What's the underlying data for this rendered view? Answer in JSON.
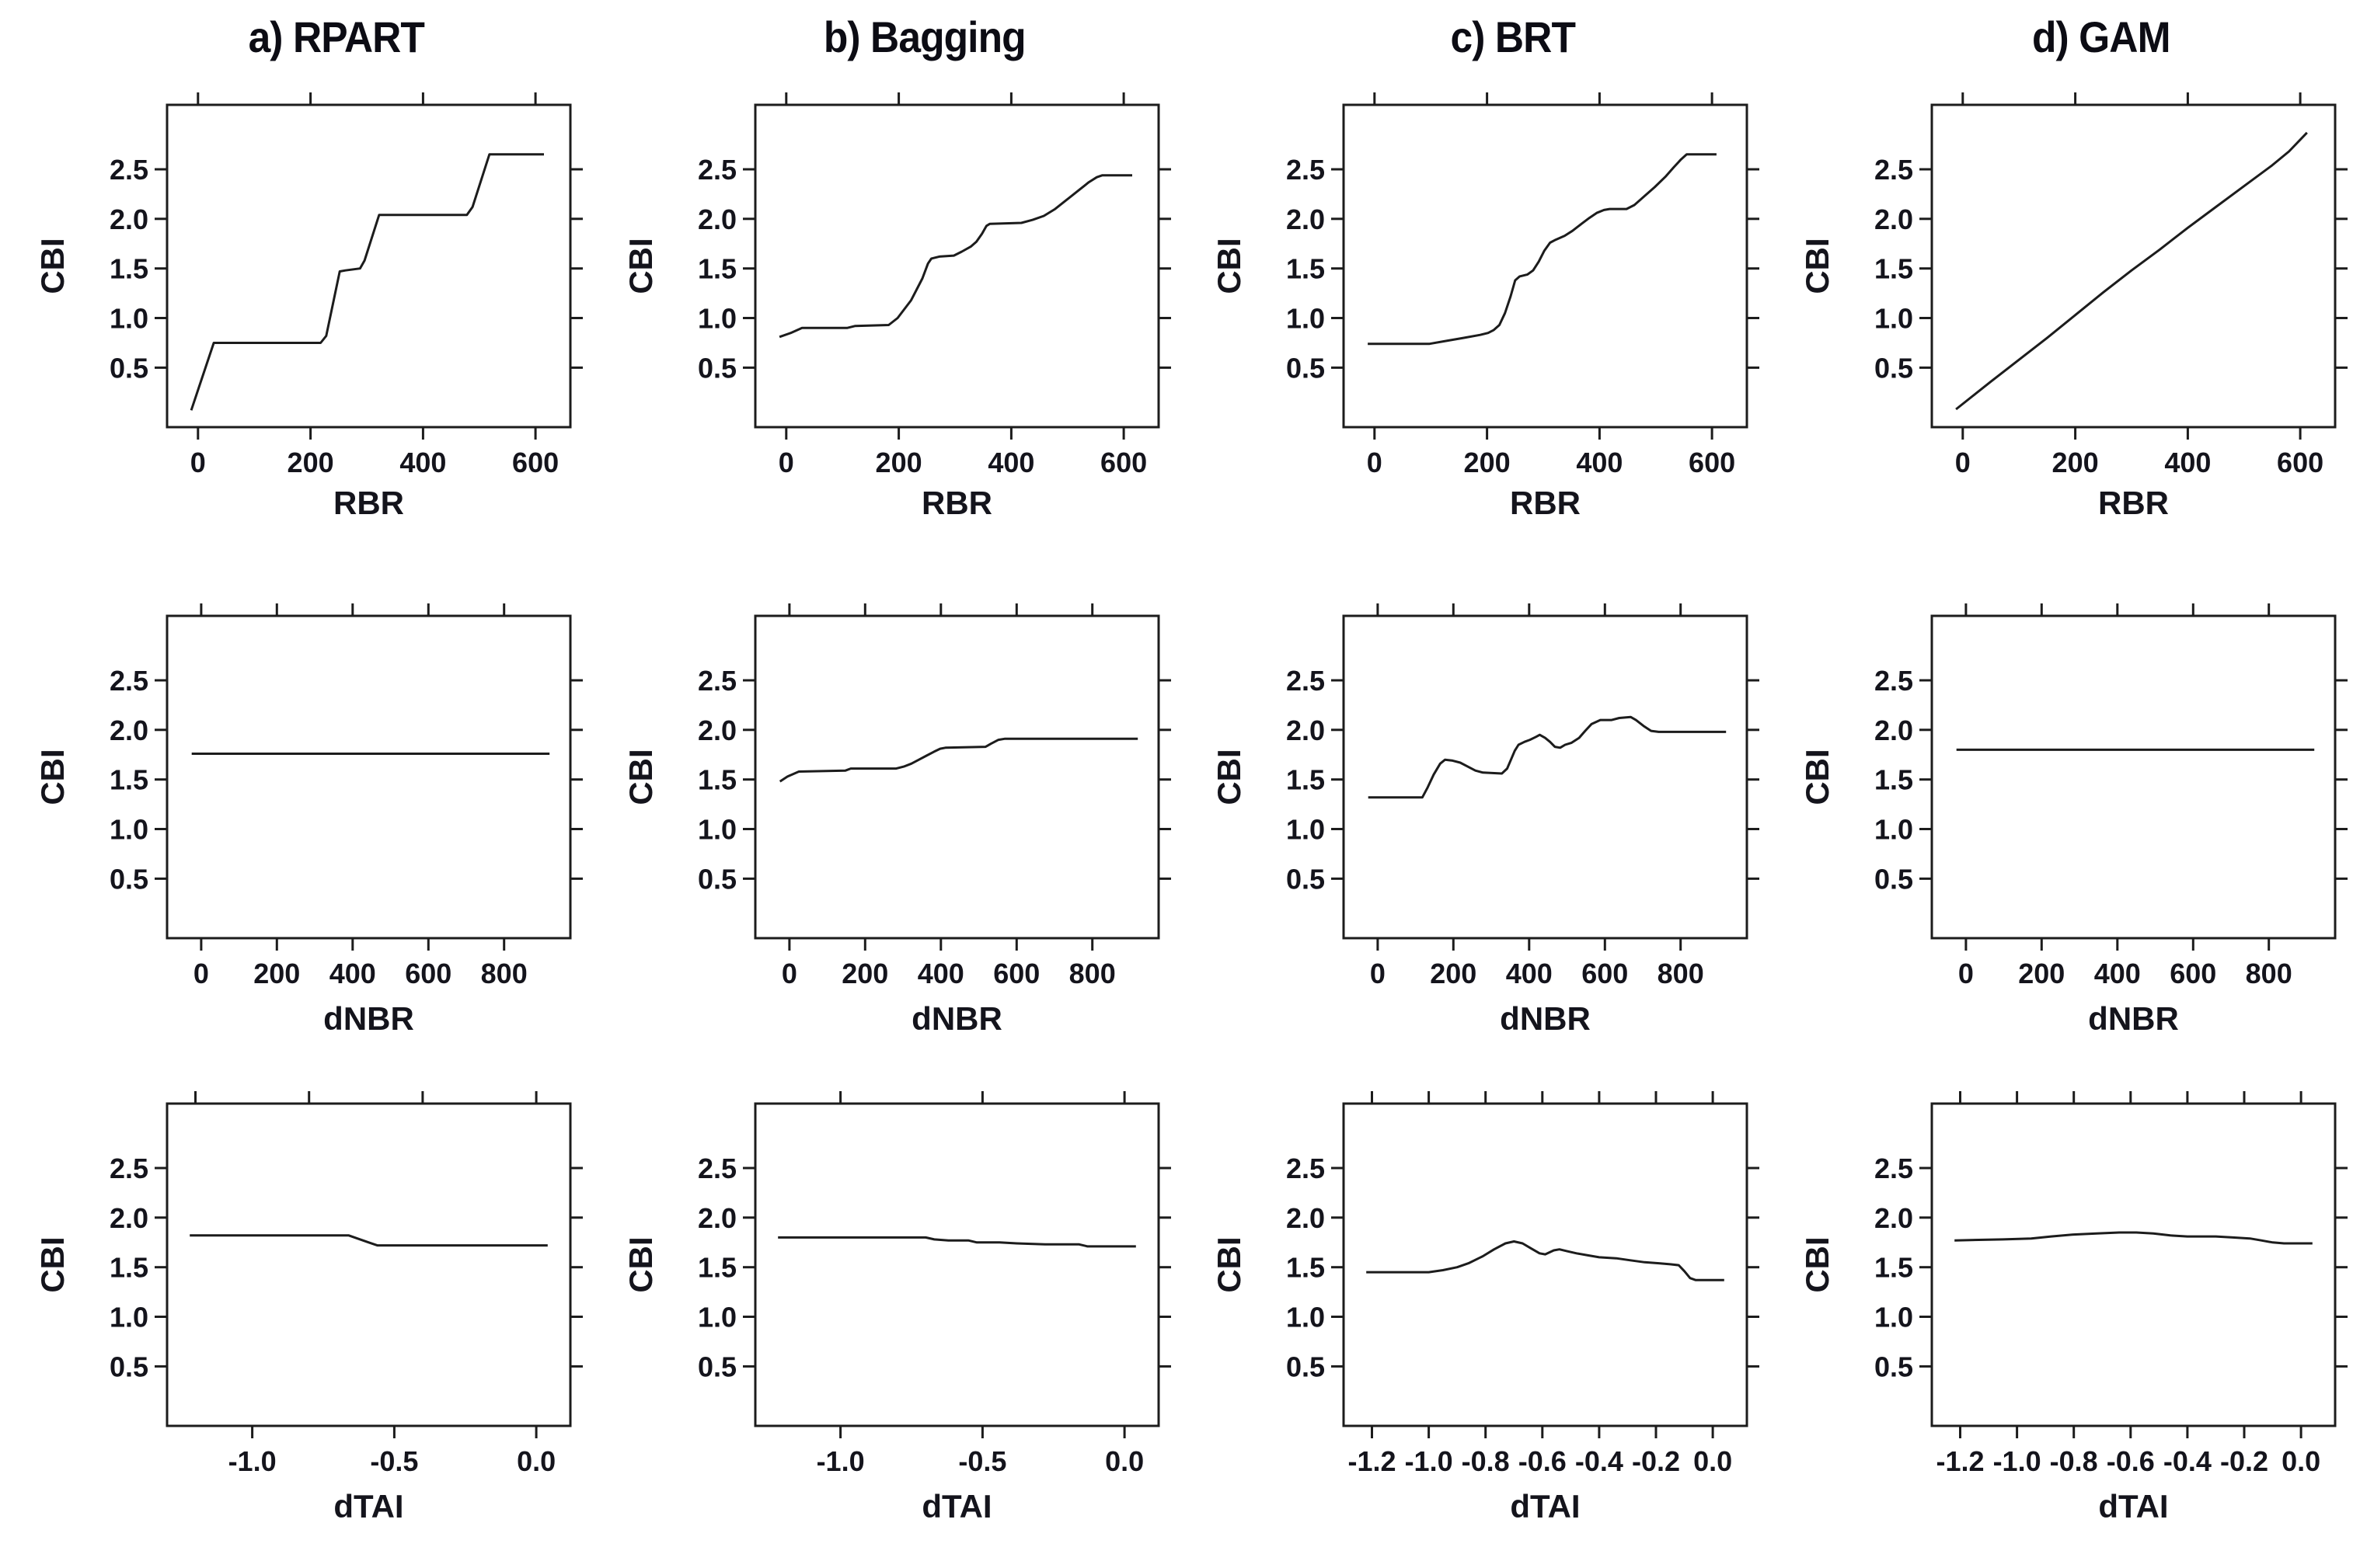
{
  "page": {
    "background": "#ffffff",
    "text_color": "#14141c",
    "line_color": "#1c1c1c"
  },
  "column_titles": [
    {
      "label": "a) RPART"
    },
    {
      "label": "b) Bagging"
    },
    {
      "label": "c) BRT"
    },
    {
      "label": "d) GAM"
    }
  ],
  "axis": {
    "y_label": "CBI",
    "x_labels": [
      "RBR",
      "dNBR",
      "dTAI"
    ]
  },
  "chart_data": [
    {
      "name": "rpart-rbr",
      "model": "a) RPART",
      "type": "line",
      "xlabel": "RBR",
      "ylabel": "CBI",
      "xlim": [
        -55,
        662
      ],
      "ylim": [
        -0.1,
        3.15
      ],
      "xticks": [
        0,
        200,
        400,
        600
      ],
      "xtick_labels": [
        "0",
        "200",
        "400",
        "600"
      ],
      "yticks": [
        0.5,
        1.0,
        1.5,
        2.0,
        2.5
      ],
      "ytick_labels": [
        "0.5",
        "1.0",
        "1.5",
        "2.0",
        "2.5"
      ],
      "grid": false,
      "legend": false,
      "points": [
        [
          -12,
          0.07
        ],
        [
          28,
          0.75
        ],
        [
          218,
          0.75
        ],
        [
          228,
          0.82
        ],
        [
          252,
          1.47
        ],
        [
          262,
          1.48
        ],
        [
          288,
          1.5
        ],
        [
          296,
          1.58
        ],
        [
          322,
          2.04
        ],
        [
          478,
          2.04
        ],
        [
          488,
          2.12
        ],
        [
          518,
          2.65
        ],
        [
          615,
          2.65
        ]
      ]
    },
    {
      "name": "bagging-rbr",
      "model": "b) Bagging",
      "type": "line",
      "xlabel": "RBR",
      "ylabel": "CBI",
      "xlim": [
        -55,
        662
      ],
      "ylim": [
        -0.1,
        3.15
      ],
      "xticks": [
        0,
        200,
        400,
        600
      ],
      "xtick_labels": [
        "0",
        "200",
        "400",
        "600"
      ],
      "yticks": [
        0.5,
        1.0,
        1.5,
        2.0,
        2.5
      ],
      "ytick_labels": [
        "0.5",
        "1.0",
        "1.5",
        "2.0",
        "2.5"
      ],
      "grid": false,
      "legend": false,
      "points": [
        [
          -12,
          0.81
        ],
        [
          8,
          0.85
        ],
        [
          28,
          0.9
        ],
        [
          108,
          0.9
        ],
        [
          122,
          0.92
        ],
        [
          182,
          0.93
        ],
        [
          198,
          1.0
        ],
        [
          222,
          1.18
        ],
        [
          242,
          1.4
        ],
        [
          252,
          1.55
        ],
        [
          258,
          1.6
        ],
        [
          272,
          1.62
        ],
        [
          298,
          1.63
        ],
        [
          312,
          1.67
        ],
        [
          328,
          1.72
        ],
        [
          338,
          1.77
        ],
        [
          348,
          1.85
        ],
        [
          356,
          1.93
        ],
        [
          362,
          1.95
        ],
        [
          418,
          1.96
        ],
        [
          438,
          1.99
        ],
        [
          458,
          2.03
        ],
        [
          478,
          2.1
        ],
        [
          498,
          2.19
        ],
        [
          518,
          2.28
        ],
        [
          538,
          2.37
        ],
        [
          552,
          2.42
        ],
        [
          562,
          2.44
        ],
        [
          615,
          2.44
        ]
      ]
    },
    {
      "name": "brt-rbr",
      "model": "c) BRT",
      "type": "line",
      "xlabel": "RBR",
      "ylabel": "CBI",
      "xlim": [
        -55,
        662
      ],
      "ylim": [
        -0.1,
        3.15
      ],
      "xticks": [
        0,
        200,
        400,
        600
      ],
      "xtick_labels": [
        "0",
        "200",
        "400",
        "600"
      ],
      "yticks": [
        0.5,
        1.0,
        1.5,
        2.0,
        2.5
      ],
      "ytick_labels": [
        "0.5",
        "1.0",
        "1.5",
        "2.0",
        "2.5"
      ],
      "grid": false,
      "legend": false,
      "points": [
        [
          -12,
          0.74
        ],
        [
          98,
          0.74
        ],
        [
          128,
          0.77
        ],
        [
          158,
          0.8
        ],
        [
          188,
          0.83
        ],
        [
          202,
          0.85
        ],
        [
          212,
          0.88
        ],
        [
          222,
          0.93
        ],
        [
          232,
          1.05
        ],
        [
          242,
          1.22
        ],
        [
          250,
          1.38
        ],
        [
          258,
          1.42
        ],
        [
          272,
          1.44
        ],
        [
          282,
          1.48
        ],
        [
          292,
          1.57
        ],
        [
          302,
          1.68
        ],
        [
          312,
          1.76
        ],
        [
          322,
          1.79
        ],
        [
          338,
          1.83
        ],
        [
          352,
          1.88
        ],
        [
          368,
          1.95
        ],
        [
          382,
          2.01
        ],
        [
          395,
          2.06
        ],
        [
          408,
          2.09
        ],
        [
          418,
          2.1
        ],
        [
          448,
          2.1
        ],
        [
          462,
          2.14
        ],
        [
          478,
          2.22
        ],
        [
          498,
          2.32
        ],
        [
          518,
          2.43
        ],
        [
          532,
          2.52
        ],
        [
          545,
          2.6
        ],
        [
          555,
          2.65
        ],
        [
          608,
          2.65
        ]
      ]
    },
    {
      "name": "gam-rbr",
      "model": "d) GAM",
      "type": "line",
      "xlabel": "RBR",
      "ylabel": "CBI",
      "xlim": [
        -55,
        662
      ],
      "ylim": [
        -0.1,
        3.15
      ],
      "xticks": [
        0,
        200,
        400,
        600
      ],
      "xtick_labels": [
        "0",
        "200",
        "400",
        "600"
      ],
      "yticks": [
        0.5,
        1.0,
        1.5,
        2.0,
        2.5
      ],
      "ytick_labels": [
        "0.5",
        "1.0",
        "1.5",
        "2.0",
        "2.5"
      ],
      "grid": false,
      "legend": false,
      "points": [
        [
          -12,
          0.08
        ],
        [
          50,
          0.36
        ],
        [
          100,
          0.58
        ],
        [
          150,
          0.8
        ],
        [
          200,
          1.03
        ],
        [
          250,
          1.26
        ],
        [
          300,
          1.48
        ],
        [
          350,
          1.69
        ],
        [
          400,
          1.91
        ],
        [
          450,
          2.12
        ],
        [
          500,
          2.33
        ],
        [
          550,
          2.54
        ],
        [
          580,
          2.68
        ],
        [
          612,
          2.87
        ]
      ]
    },
    {
      "name": "rpart-dnbr",
      "model": "a) RPART",
      "type": "line",
      "xlabel": "dNBR",
      "ylabel": "CBI",
      "xlim": [
        -90,
        975
      ],
      "ylim": [
        -0.1,
        3.15
      ],
      "xticks": [
        0,
        200,
        400,
        600,
        800
      ],
      "xtick_labels": [
        "0",
        "200",
        "400",
        "600",
        "800"
      ],
      "yticks": [
        0.5,
        1.0,
        1.5,
        2.0,
        2.5
      ],
      "ytick_labels": [
        "0.5",
        "1.0",
        "1.5",
        "2.0",
        "2.5"
      ],
      "grid": false,
      "legend": false,
      "points": [
        [
          -25,
          1.76
        ],
        [
          920,
          1.76
        ]
      ]
    },
    {
      "name": "bagging-dnbr",
      "model": "b) Bagging",
      "type": "line",
      "xlabel": "dNBR",
      "ylabel": "CBI",
      "xlim": [
        -90,
        975
      ],
      "ylim": [
        -0.1,
        3.15
      ],
      "xticks": [
        0,
        200,
        400,
        600,
        800
      ],
      "xtick_labels": [
        "0",
        "200",
        "400",
        "600",
        "800"
      ],
      "yticks": [
        0.5,
        1.0,
        1.5,
        2.0,
        2.5
      ],
      "ytick_labels": [
        "0.5",
        "1.0",
        "1.5",
        "2.0",
        "2.5"
      ],
      "grid": false,
      "legend": false,
      "points": [
        [
          -25,
          1.48
        ],
        [
          -5,
          1.53
        ],
        [
          25,
          1.58
        ],
        [
          148,
          1.59
        ],
        [
          162,
          1.61
        ],
        [
          282,
          1.61
        ],
        [
          302,
          1.63
        ],
        [
          322,
          1.66
        ],
        [
          342,
          1.7
        ],
        [
          362,
          1.74
        ],
        [
          382,
          1.78
        ],
        [
          398,
          1.81
        ],
        [
          412,
          1.82
        ],
        [
          518,
          1.83
        ],
        [
          532,
          1.86
        ],
        [
          552,
          1.9
        ],
        [
          568,
          1.91
        ],
        [
          920,
          1.91
        ]
      ]
    },
    {
      "name": "brt-dnbr",
      "model": "c) BRT",
      "type": "line",
      "xlabel": "dNBR",
      "ylabel": "CBI",
      "xlim": [
        -90,
        975
      ],
      "ylim": [
        -0.1,
        3.15
      ],
      "xticks": [
        0,
        200,
        400,
        600,
        800
      ],
      "xtick_labels": [
        "0",
        "200",
        "400",
        "600",
        "800"
      ],
      "yticks": [
        0.5,
        1.0,
        1.5,
        2.0,
        2.5
      ],
      "ytick_labels": [
        "0.5",
        "1.0",
        "1.5",
        "2.0",
        "2.5"
      ],
      "grid": false,
      "legend": false,
      "points": [
        [
          -25,
          1.32
        ],
        [
          118,
          1.32
        ],
        [
          132,
          1.42
        ],
        [
          148,
          1.55
        ],
        [
          165,
          1.66
        ],
        [
          178,
          1.7
        ],
        [
          198,
          1.69
        ],
        [
          218,
          1.67
        ],
        [
          238,
          1.63
        ],
        [
          258,
          1.59
        ],
        [
          278,
          1.57
        ],
        [
          328,
          1.56
        ],
        [
          342,
          1.61
        ],
        [
          352,
          1.7
        ],
        [
          362,
          1.79
        ],
        [
          372,
          1.85
        ],
        [
          388,
          1.88
        ],
        [
          402,
          1.9
        ],
        [
          418,
          1.93
        ],
        [
          428,
          1.95
        ],
        [
          442,
          1.92
        ],
        [
          455,
          1.88
        ],
        [
          468,
          1.83
        ],
        [
          482,
          1.82
        ],
        [
          495,
          1.85
        ],
        [
          512,
          1.87
        ],
        [
          532,
          1.92
        ],
        [
          548,
          1.99
        ],
        [
          565,
          2.06
        ],
        [
          588,
          2.1
        ],
        [
          618,
          2.1
        ],
        [
          638,
          2.12
        ],
        [
          668,
          2.13
        ],
        [
          682,
          2.1
        ],
        [
          702,
          2.04
        ],
        [
          722,
          1.99
        ],
        [
          742,
          1.98
        ],
        [
          920,
          1.98
        ]
      ]
    },
    {
      "name": "gam-dnbr",
      "model": "d) GAM",
      "type": "line",
      "xlabel": "dNBR",
      "ylabel": "CBI",
      "xlim": [
        -90,
        975
      ],
      "ylim": [
        -0.1,
        3.15
      ],
      "xticks": [
        0,
        200,
        400,
        600,
        800
      ],
      "xtick_labels": [
        "0",
        "200",
        "400",
        "600",
        "800"
      ],
      "yticks": [
        0.5,
        1.0,
        1.5,
        2.0,
        2.5
      ],
      "ytick_labels": [
        "0.5",
        "1.0",
        "1.5",
        "2.0",
        "2.5"
      ],
      "grid": false,
      "legend": false,
      "points": [
        [
          -25,
          1.8
        ],
        [
          920,
          1.8
        ]
      ]
    },
    {
      "name": "rpart-dtai",
      "model": "a) RPART",
      "type": "line",
      "xlabel": "dTAI",
      "ylabel": "CBI",
      "xlim": [
        -1.3,
        0.12
      ],
      "ylim": [
        -0.1,
        3.15
      ],
      "xticks": [
        -1.0,
        -0.5,
        0.0
      ],
      "xtick_labels": [
        "-1.0",
        "-0.5",
        "0.0"
      ],
      "xticks_top": [
        -1.2,
        -0.8,
        -0.4,
        0.0
      ],
      "yticks": [
        0.5,
        1.0,
        1.5,
        2.0,
        2.5
      ],
      "ytick_labels": [
        "0.5",
        "1.0",
        "1.5",
        "2.0",
        "2.5"
      ],
      "grid": false,
      "legend": false,
      "points": [
        [
          -1.22,
          1.82
        ],
        [
          -0.66,
          1.82
        ],
        [
          -0.63,
          1.79
        ],
        [
          -0.59,
          1.75
        ],
        [
          -0.56,
          1.72
        ],
        [
          0.04,
          1.72
        ]
      ]
    },
    {
      "name": "bagging-dtai",
      "model": "b) Bagging",
      "type": "line",
      "xlabel": "dTAI",
      "ylabel": "CBI",
      "xlim": [
        -1.3,
        0.12
      ],
      "ylim": [
        -0.1,
        3.15
      ],
      "xticks": [
        -1.0,
        -0.5,
        0.0
      ],
      "xtick_labels": [
        "-1.0",
        "-0.5",
        "0.0"
      ],
      "yticks": [
        0.5,
        1.0,
        1.5,
        2.0,
        2.5
      ],
      "ytick_labels": [
        "0.5",
        "1.0",
        "1.5",
        "2.0",
        "2.5"
      ],
      "grid": false,
      "legend": false,
      "points": [
        [
          -1.22,
          1.8
        ],
        [
          -0.7,
          1.8
        ],
        [
          -0.67,
          1.78
        ],
        [
          -0.62,
          1.77
        ],
        [
          -0.55,
          1.77
        ],
        [
          -0.52,
          1.75
        ],
        [
          -0.44,
          1.75
        ],
        [
          -0.38,
          1.74
        ],
        [
          -0.28,
          1.73
        ],
        [
          -0.16,
          1.73
        ],
        [
          -0.13,
          1.71
        ],
        [
          0.04,
          1.71
        ]
      ]
    },
    {
      "name": "brt-dtai",
      "model": "c) BRT",
      "type": "line",
      "xlabel": "dTAI",
      "ylabel": "CBI",
      "xlim": [
        -1.3,
        0.12
      ],
      "ylim": [
        -0.1,
        3.15
      ],
      "xticks": [
        -1.2,
        -1.0,
        -0.8,
        -0.6,
        -0.4,
        -0.2,
        0.0
      ],
      "xtick_labels": [
        "-1.2",
        "-1.0",
        "-0.8",
        "-0.6",
        "-0.4",
        "-0.2",
        "0.0"
      ],
      "yticks": [
        0.5,
        1.0,
        1.5,
        2.0,
        2.5
      ],
      "ytick_labels": [
        "0.5",
        "1.0",
        "1.5",
        "2.0",
        "2.5"
      ],
      "grid": false,
      "legend": false,
      "points": [
        [
          -1.22,
          1.45
        ],
        [
          -1.0,
          1.45
        ],
        [
          -0.95,
          1.47
        ],
        [
          -0.9,
          1.5
        ],
        [
          -0.86,
          1.54
        ],
        [
          -0.81,
          1.61
        ],
        [
          -0.77,
          1.68
        ],
        [
          -0.73,
          1.74
        ],
        [
          -0.7,
          1.76
        ],
        [
          -0.67,
          1.74
        ],
        [
          -0.64,
          1.69
        ],
        [
          -0.61,
          1.64
        ],
        [
          -0.59,
          1.63
        ],
        [
          -0.56,
          1.67
        ],
        [
          -0.54,
          1.68
        ],
        [
          -0.51,
          1.66
        ],
        [
          -0.48,
          1.64
        ],
        [
          -0.44,
          1.62
        ],
        [
          -0.4,
          1.6
        ],
        [
          -0.34,
          1.59
        ],
        [
          -0.29,
          1.57
        ],
        [
          -0.24,
          1.55
        ],
        [
          -0.19,
          1.54
        ],
        [
          -0.15,
          1.53
        ],
        [
          -0.12,
          1.52
        ],
        [
          -0.1,
          1.46
        ],
        [
          -0.08,
          1.39
        ],
        [
          -0.06,
          1.37
        ],
        [
          0.04,
          1.37
        ]
      ]
    },
    {
      "name": "gam-dtai",
      "model": "d) GAM",
      "type": "line",
      "xlabel": "dTAI",
      "ylabel": "CBI",
      "xlim": [
        -1.3,
        0.12
      ],
      "ylim": [
        -0.1,
        3.15
      ],
      "xticks": [
        -1.2,
        -1.0,
        -0.8,
        -0.6,
        -0.4,
        -0.2,
        0.0
      ],
      "xtick_labels": [
        "-1.2",
        "-1.0",
        "-0.8",
        "-0.6",
        "-0.4",
        "-0.2",
        "0.0"
      ],
      "yticks": [
        0.5,
        1.0,
        1.5,
        2.0,
        2.5
      ],
      "ytick_labels": [
        "0.5",
        "1.0",
        "1.5",
        "2.0",
        "2.5"
      ],
      "grid": false,
      "legend": false,
      "points": [
        [
          -1.22,
          1.77
        ],
        [
          -1.05,
          1.78
        ],
        [
          -0.95,
          1.79
        ],
        [
          -0.88,
          1.81
        ],
        [
          -0.8,
          1.83
        ],
        [
          -0.72,
          1.84
        ],
        [
          -0.64,
          1.85
        ],
        [
          -0.58,
          1.85
        ],
        [
          -0.52,
          1.84
        ],
        [
          -0.46,
          1.82
        ],
        [
          -0.4,
          1.81
        ],
        [
          -0.3,
          1.81
        ],
        [
          -0.24,
          1.8
        ],
        [
          -0.18,
          1.79
        ],
        [
          -0.14,
          1.77
        ],
        [
          -0.1,
          1.75
        ],
        [
          -0.06,
          1.74
        ],
        [
          0.04,
          1.74
        ]
      ]
    }
  ]
}
